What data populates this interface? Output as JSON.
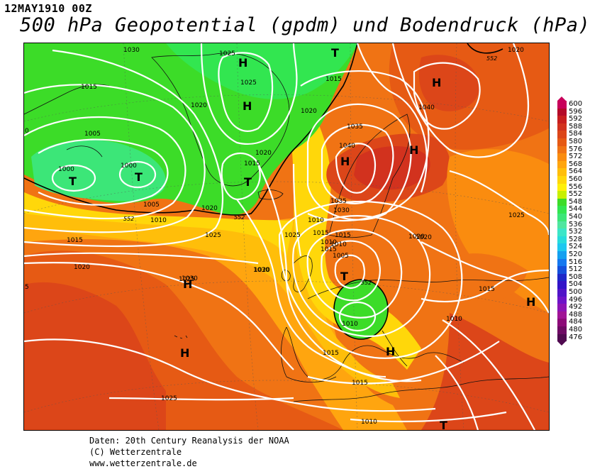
{
  "header": {
    "date": "12MAY1910 00Z",
    "title": "500 hPa Geopotential (gpdm) und Bodendruck (hPa)"
  },
  "footer": {
    "line1": "Daten: 20th Century Reanalysis der NOAA",
    "line2": "(C) Wetterzentrale",
    "line3": "www.wetterzentrale.de"
  },
  "legend": {
    "values": [
      "600",
      "596",
      "592",
      "588",
      "584",
      "580",
      "576",
      "572",
      "568",
      "564",
      "560",
      "556",
      "552",
      "548",
      "544",
      "540",
      "536",
      "532",
      "528",
      "524",
      "520",
      "516",
      "512",
      "508",
      "504",
      "500",
      "496",
      "492",
      "488",
      "484",
      "480",
      "476"
    ],
    "colors": [
      "#c8005a",
      "#b40a28",
      "#c81e1e",
      "#d2321e",
      "#dc4619",
      "#e65a14",
      "#f07314",
      "#fa8c0f",
      "#ffa50f",
      "#ffbe0a",
      "#ffd70a",
      "#fff00a",
      "#c8f000",
      "#3cdc28",
      "#32e650",
      "#3ce678",
      "#50e6a0",
      "#3ce6c8",
      "#28dcdc",
      "#1ec8f0",
      "#14a0f0",
      "#1478f0",
      "#1450dc",
      "#1e28c8",
      "#3214c8",
      "#5014c8",
      "#6e14c8",
      "#8c14b4",
      "#a01496",
      "#8c0a78",
      "#6e0a64",
      "#500a50"
    ]
  },
  "map_labels": {
    "isobars": [
      "1030",
      "1025",
      "1015",
      "1025",
      "1020",
      "1015",
      "1005",
      "1000",
      "1000",
      "1005",
      "1010",
      "1020",
      "1020",
      "1015",
      "1020",
      "1025",
      "1015",
      "1020",
      "1025",
      "1030",
      "1035",
      "1040",
      "1035",
      "1030",
      "1025",
      "1020",
      "1015",
      "1010",
      "1005",
      "1010",
      "1015",
      "1015",
      "1010",
      "1015",
      "1020",
      "1025",
      "1010",
      "1030",
      "1020",
      "1025",
      "1040",
      "1020",
      "1015",
      "1010",
      "1015",
      "1010"
    ],
    "pressure_systems": [
      "T",
      "H",
      "H",
      "T",
      "T",
      "T",
      "H",
      "H",
      "H",
      "T",
      "H",
      "H",
      "H",
      "T",
      "H"
    ],
    "gpdm_labels": [
      "552",
      "552",
      "552",
      "552"
    ],
    "edge_labels": [
      "0",
      "5"
    ]
  }
}
